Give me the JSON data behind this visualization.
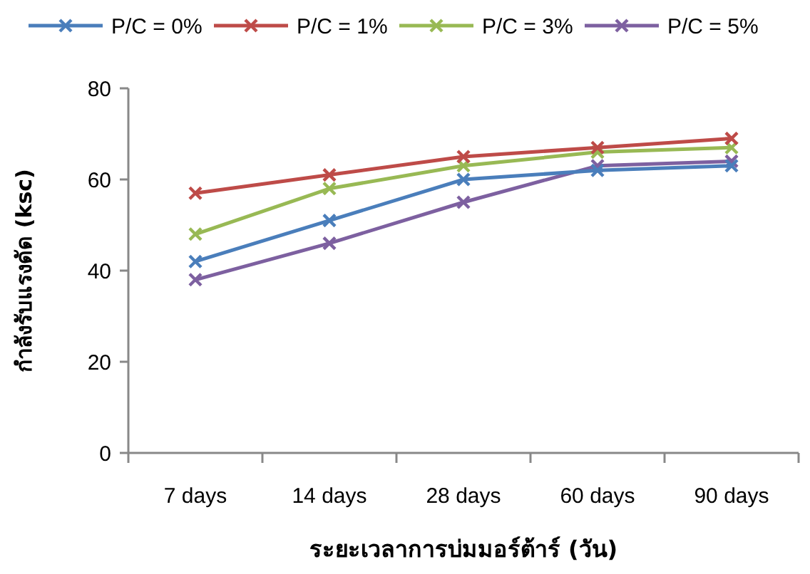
{
  "chart_data": {
    "type": "line",
    "xlabel": "ระยะเวลาการบ่มมอร์ต้าร์ (วัน)",
    "ylabel": "กำลังรับแรงดัด (ksc)",
    "categories": [
      "7 days",
      "14 days",
      "28 days",
      "60 days",
      "90 days"
    ],
    "series": [
      {
        "name": "P/C = 0%",
        "color": "#4a7ebb",
        "values": [
          42,
          51,
          60,
          62,
          63
        ]
      },
      {
        "name": "P/C = 1%",
        "color": "#be4b48",
        "values": [
          57,
          61,
          65,
          67,
          69
        ]
      },
      {
        "name": "P/C = 3%",
        "color": "#98b954",
        "values": [
          48,
          58,
          63,
          66,
          67
        ]
      },
      {
        "name": "P/C = 5%",
        "color": "#7d60a0",
        "values": [
          38,
          46,
          55,
          63,
          64
        ]
      }
    ],
    "ylim": [
      0,
      80
    ],
    "yticks": [
      0,
      20,
      40,
      60,
      80
    ],
    "grid": false,
    "legend": "top",
    "marker": "cross",
    "line_style": "solid"
  }
}
